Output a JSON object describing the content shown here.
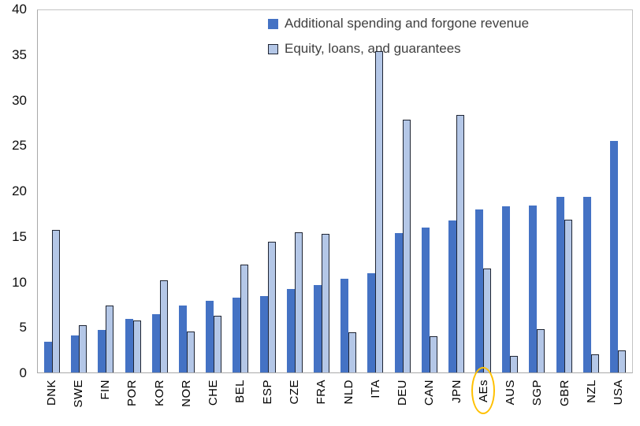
{
  "chart_data": {
    "type": "bar",
    "title": "",
    "xlabel": "",
    "ylabel": "",
    "ylim": [
      0,
      40
    ],
    "y_ticks": [
      40,
      35,
      30,
      25,
      20,
      15,
      10,
      5,
      0
    ],
    "grid": false,
    "legend_position": "top-inside",
    "categories": [
      "DNK",
      "SWE",
      "FIN",
      "POR",
      "KOR",
      "NOR",
      "CHE",
      "BEL",
      "ESP",
      "CZE",
      "FRA",
      "NLD",
      "ITA",
      "DEU",
      "CAN",
      "JPN",
      "AEs",
      "AUS",
      "SGP",
      "GBR",
      "NZL",
      "USA"
    ],
    "series": [
      {
        "name": "Additional spending and forgone revenue",
        "color": "#4472C4",
        "values": [
          3.4,
          4.1,
          4.7,
          5.9,
          6.4,
          7.4,
          7.9,
          8.2,
          8.4,
          9.2,
          9.6,
          10.3,
          10.9,
          15.3,
          15.9,
          16.7,
          17.9,
          18.3,
          18.4,
          19.3,
          19.3,
          25.5
        ]
      },
      {
        "name": "Equity, loans, and guarantees",
        "color": "#B4C7E7",
        "border_color": "#1F2533",
        "values": [
          15.7,
          5.2,
          7.4,
          5.7,
          10.1,
          4.5,
          6.2,
          11.9,
          14.4,
          15.4,
          15.2,
          4.4,
          35.3,
          27.8,
          4.0,
          28.3,
          11.4,
          1.8,
          4.8,
          16.8,
          2.0,
          2.4
        ]
      }
    ],
    "highlighted_category": "AEs",
    "highlight_color": "#FFC000",
    "axis_text_color": "#0d0d0d",
    "legend_text_color": "#404040"
  }
}
